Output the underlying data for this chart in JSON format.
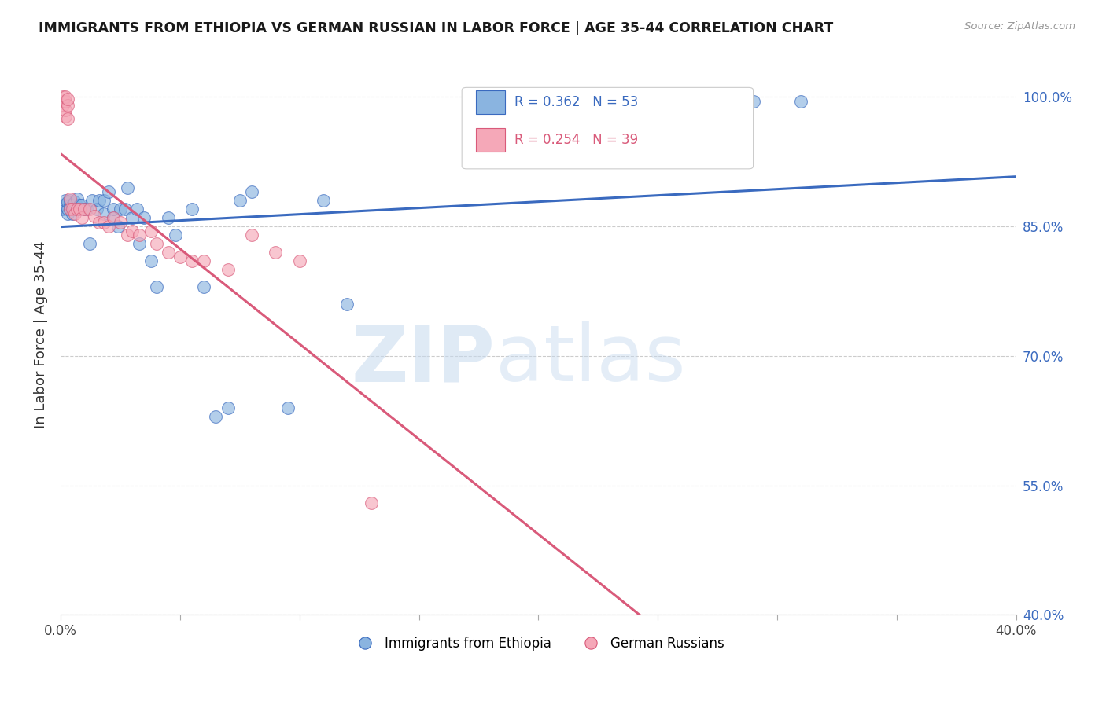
{
  "title": "IMMIGRANTS FROM ETHIOPIA VS GERMAN RUSSIAN IN LABOR FORCE | AGE 35-44 CORRELATION CHART",
  "source": "Source: ZipAtlas.com",
  "ylabel": "In Labor Force | Age 35-44",
  "xlim": [
    0.0,
    0.4
  ],
  "ylim": [
    0.4,
    1.05
  ],
  "yticks": [
    0.4,
    0.55,
    0.7,
    0.85,
    1.0
  ],
  "ytick_labels": [
    "40.0%",
    "55.0%",
    "70.0%",
    "85.0%",
    "100.0%"
  ],
  "xticks": [
    0.0,
    0.05,
    0.1,
    0.15,
    0.2,
    0.25,
    0.3,
    0.35,
    0.4
  ],
  "xtick_labels": [
    "0.0%",
    "",
    "",
    "",
    "",
    "",
    "",
    "",
    "40.0%"
  ],
  "blue_R": 0.362,
  "blue_N": 53,
  "pink_R": 0.254,
  "pink_N": 39,
  "blue_color": "#8ab4e0",
  "pink_color": "#f5a8b8",
  "blue_line_color": "#3a6abf",
  "pink_line_color": "#d95a7a",
  "legend1": "Immigrants from Ethiopia",
  "legend2": "German Russians",
  "blue_x": [
    0.001,
    0.001,
    0.002,
    0.002,
    0.003,
    0.003,
    0.003,
    0.004,
    0.004,
    0.004,
    0.005,
    0.005,
    0.006,
    0.006,
    0.007,
    0.007,
    0.008,
    0.008,
    0.009,
    0.01,
    0.011,
    0.012,
    0.013,
    0.015,
    0.016,
    0.018,
    0.018,
    0.02,
    0.022,
    0.022,
    0.024,
    0.025,
    0.027,
    0.028,
    0.03,
    0.032,
    0.033,
    0.035,
    0.038,
    0.04,
    0.045,
    0.048,
    0.055,
    0.06,
    0.065,
    0.07,
    0.075,
    0.08,
    0.095,
    0.11,
    0.12,
    0.29,
    0.31
  ],
  "blue_y": [
    0.87,
    0.875,
    0.875,
    0.88,
    0.865,
    0.87,
    0.878,
    0.87,
    0.875,
    0.88,
    0.865,
    0.875,
    0.87,
    0.878,
    0.87,
    0.882,
    0.875,
    0.87,
    0.875,
    0.87,
    0.87,
    0.83,
    0.88,
    0.87,
    0.88,
    0.865,
    0.88,
    0.89,
    0.86,
    0.87,
    0.85,
    0.87,
    0.87,
    0.895,
    0.86,
    0.87,
    0.83,
    0.86,
    0.81,
    0.78,
    0.86,
    0.84,
    0.87,
    0.78,
    0.63,
    0.64,
    0.88,
    0.89,
    0.64,
    0.88,
    0.76,
    0.995,
    0.995
  ],
  "pink_x": [
    0.001,
    0.001,
    0.001,
    0.002,
    0.002,
    0.002,
    0.002,
    0.003,
    0.003,
    0.003,
    0.004,
    0.004,
    0.005,
    0.006,
    0.007,
    0.008,
    0.009,
    0.01,
    0.012,
    0.014,
    0.016,
    0.018,
    0.02,
    0.022,
    0.025,
    0.028,
    0.03,
    0.033,
    0.038,
    0.04,
    0.045,
    0.05,
    0.055,
    0.06,
    0.07,
    0.08,
    0.09,
    0.1,
    0.13
  ],
  "pink_y": [
    0.99,
    0.995,
    1.0,
    0.978,
    0.985,
    0.995,
    1.0,
    0.975,
    0.99,
    0.998,
    0.882,
    0.87,
    0.87,
    0.865,
    0.87,
    0.87,
    0.86,
    0.87,
    0.87,
    0.862,
    0.855,
    0.855,
    0.85,
    0.86,
    0.855,
    0.84,
    0.845,
    0.84,
    0.845,
    0.83,
    0.82,
    0.815,
    0.81,
    0.81,
    0.8,
    0.84,
    0.82,
    0.81,
    0.53
  ]
}
